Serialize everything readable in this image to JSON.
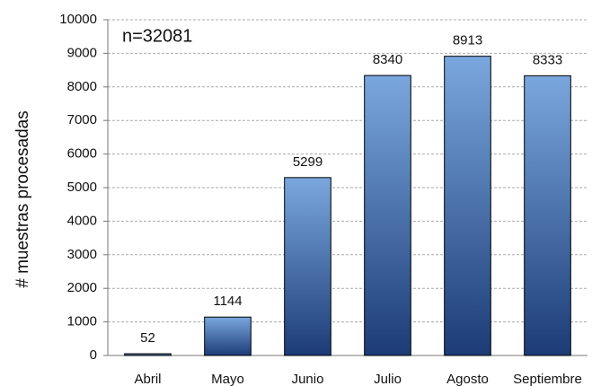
{
  "chart_data": {
    "type": "bar",
    "ylabel": "# muestras procesadas",
    "annotation": "n=32081",
    "categories": [
      "Abril",
      "Mayo",
      "Junio",
      "Julio",
      "Agosto",
      "Septiembre"
    ],
    "values": [
      52,
      1144,
      5299,
      8340,
      8913,
      8333
    ],
    "gradient": [
      "#7aa7de",
      "#1c3b77"
    ],
    "ylim": [
      0,
      10000
    ],
    "yticks": [
      0,
      1000,
      2000,
      3000,
      4000,
      5000,
      6000,
      7000,
      8000,
      9000,
      10000
    ],
    "grid": true
  }
}
